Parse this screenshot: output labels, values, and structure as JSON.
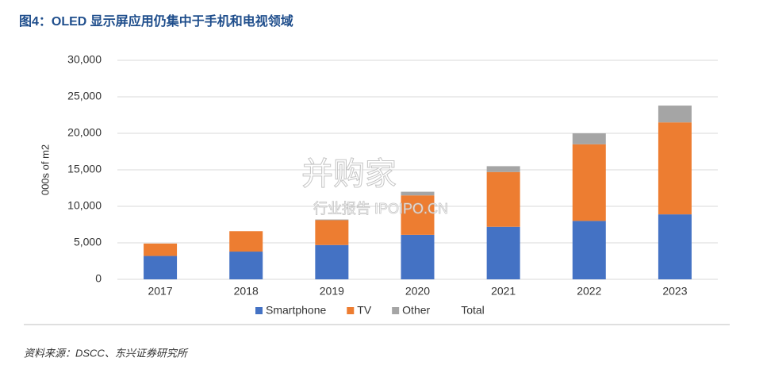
{
  "chart_data": {
    "type": "stacked_bar",
    "title": "图4：OLED 显示屏应用仍集中于手机和电视领域",
    "y_label": "000s of m2",
    "source": "资料来源：DSCC、东兴证券研究所",
    "watermark": [
      "并购家",
      "行业报告 IPOIPO.CN"
    ],
    "categories": [
      "2017",
      "2018",
      "2019",
      "2020",
      "2021",
      "2022",
      "2023"
    ],
    "series": [
      {
        "name": "Smartphone",
        "color": "#4472c4",
        "values": [
          3200,
          3800,
          4700,
          6100,
          7200,
          8000,
          8900
        ]
      },
      {
        "name": "TV",
        "color": "#ed7d31",
        "values": [
          1700,
          2800,
          3400,
          5400,
          7500,
          10500,
          12600
        ]
      },
      {
        "name": "Other",
        "color": "#a5a5a5",
        "values": [
          0,
          0,
          100,
          500,
          800,
          1500,
          2300
        ]
      },
      {
        "name": "Total",
        "color": "none",
        "values": [
          null,
          null,
          null,
          null,
          null,
          null,
          null
        ]
      }
    ],
    "ylim": [
      0,
      30000
    ],
    "yticks": [
      0,
      {
        "value": 5000,
        "label": "5,000"
      },
      {
        "value": 10000,
        "label": "10,000"
      },
      {
        "value": 15000,
        "label": "15,000"
      },
      {
        "value": 20000,
        "label": "20,000"
      },
      {
        "value": 25000,
        "label": "25,000"
      },
      {
        "value": 30000,
        "label": "30,000"
      }
    ],
    "grid": true,
    "legend": "bottom"
  }
}
